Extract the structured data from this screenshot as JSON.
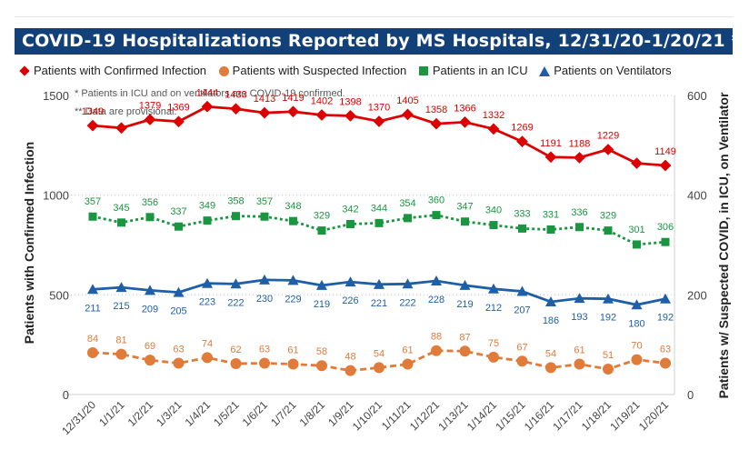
{
  "header": {
    "title": "COVID-19 Hospitalizations Reported by MS Hospitals, 12/31/20-1/20/21 *,**"
  },
  "legend": [
    {
      "label": "Patients with Confirmed Infection",
      "color": "#dc0000",
      "icon": "diamond-icon"
    },
    {
      "label": "Patients with Suspected Infection",
      "color": "#e07b3a",
      "icon": "circle-icon"
    },
    {
      "label": "Patients in an ICU",
      "color": "#1a9641",
      "icon": "square-icon"
    },
    {
      "label": "Patients on Ventilators",
      "color": "#1f5fa8",
      "icon": "triangle-icon"
    }
  ],
  "notes": [
    "* Patients in ICU and on ventilators are COVID-19 confirmed.",
    "** Data are provisional."
  ],
  "chart_data": {
    "type": "line",
    "title": "COVID-19 Hospitalizations Reported by MS Hospitals, 12/31/20-1/20/21 *,**",
    "categories": [
      "12/31/20",
      "1/1/21",
      "1/2/21",
      "1/3/21",
      "1/4/21",
      "1/5/21",
      "1/6/21",
      "1/7/21",
      "1/8/21",
      "1/9/21",
      "1/10/21",
      "1/11/21",
      "1/12/21",
      "1/13/21",
      "1/14/21",
      "1/15/21",
      "1/16/21",
      "1/17/21",
      "1/18/21",
      "1/19/21",
      "1/20/21"
    ],
    "ylabel_left": "Patients with Confirmed Infection",
    "ylabel_right": "Patients w/ Suspected COVID, in ICU, on Ventilator",
    "ylim_left": [
      0,
      1500
    ],
    "yticks_left": [
      0,
      500,
      1000,
      1500
    ],
    "ylim_right": [
      0,
      600
    ],
    "yticks_right": [
      0,
      200,
      400,
      600
    ],
    "grid": "dotted horizontal",
    "legend_position": "top",
    "series": [
      {
        "name": "Patients with Confirmed Infection",
        "axis": "left",
        "color": "#dc0000",
        "marker": "diamond",
        "line": "solid",
        "values": [
          1349,
          1337,
          1379,
          1369,
          1444,
          1433,
          1413,
          1419,
          1402,
          1398,
          1370,
          1405,
          1358,
          1366,
          1332,
          1269,
          1191,
          1188,
          1229,
          1160,
          1149
        ],
        "labels": [
          "1349",
          "",
          "1379",
          "1369",
          "1444",
          "1433",
          "1413",
          "1419",
          "1402",
          "1398",
          "1370",
          "1405",
          "1358",
          "1366",
          "1332",
          "1269",
          "1191",
          "1188",
          "1229",
          "",
          "1149"
        ]
      },
      {
        "name": "Patients in an ICU",
        "axis": "right",
        "color": "#1a9641",
        "marker": "square",
        "line": "dotted",
        "values": [
          357,
          345,
          356,
          337,
          349,
          358,
          357,
          348,
          329,
          342,
          344,
          354,
          360,
          347,
          340,
          333,
          331,
          336,
          329,
          301,
          306
        ],
        "labels": [
          "357",
          "345",
          "356",
          "337",
          "349",
          "358",
          "357",
          "348",
          "329",
          "342",
          "344",
          "354",
          "360",
          "347",
          "340",
          "333",
          "331",
          "336",
          "329",
          "301",
          "306"
        ]
      },
      {
        "name": "Patients on Ventilators",
        "axis": "right",
        "color": "#1f5fa8",
        "marker": "triangle",
        "line": "solid",
        "values": [
          211,
          215,
          209,
          205,
          223,
          222,
          230,
          229,
          219,
          226,
          221,
          222,
          228,
          219,
          212,
          207,
          186,
          193,
          192,
          180,
          192
        ],
        "labels": [
          "211",
          "215",
          "209",
          "205",
          "223",
          "222",
          "230",
          "229",
          "219",
          "226",
          "221",
          "222",
          "228",
          "219",
          "212",
          "207",
          "186",
          "193",
          "192",
          "180",
          "192"
        ]
      },
      {
        "name": "Patients with Suspected Infection",
        "axis": "right",
        "color": "#e07b3a",
        "marker": "circle",
        "line": "dashed",
        "values": [
          84,
          81,
          69,
          63,
          74,
          62,
          63,
          61,
          58,
          48,
          54,
          61,
          88,
          87,
          75,
          67,
          54,
          61,
          51,
          70,
          63
        ],
        "labels": [
          "84",
          "81",
          "69",
          "63",
          "74",
          "62",
          "63",
          "61",
          "58",
          "48",
          "54",
          "61",
          "88",
          "87",
          "75",
          "67",
          "54",
          "61",
          "51",
          "70",
          "63"
        ]
      }
    ]
  }
}
